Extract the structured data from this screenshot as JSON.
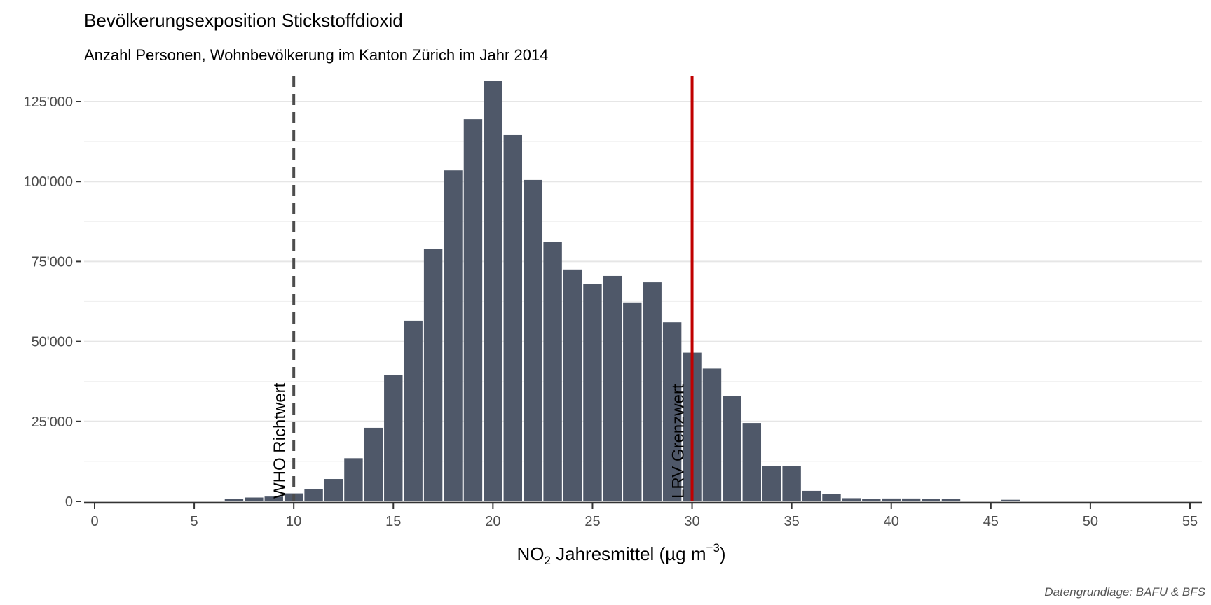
{
  "chart_data": {
    "type": "bar",
    "title": "Bevölkerungsexposition Stickstoffdioxid",
    "subtitle": "Anzahl Personen, Wohnbevölkerung im Kanton Zürich im Jahr 2014",
    "xlabel": {
      "pre": "NO",
      "sub": "2",
      "mid": " Jahresmittel (µg m",
      "sup": "−3",
      "post": ")"
    },
    "ylabel": "",
    "caption": "Datengrundlage: BAFU & BFS",
    "bar_color": "#4f5869",
    "xlim": [
      -0.5,
      55.5
    ],
    "ylim": [
      0,
      132000
    ],
    "x_ticks": [
      0,
      5,
      10,
      15,
      20,
      25,
      30,
      35,
      40,
      45,
      50,
      55
    ],
    "x_tick_labels": [
      "0",
      "5",
      "10",
      "15",
      "20",
      "25",
      "30",
      "35",
      "40",
      "45",
      "50",
      "55"
    ],
    "y_ticks": [
      0,
      25000,
      50000,
      75000,
      100000,
      125000
    ],
    "y_tick_labels": [
      "0",
      "25'000",
      "50'000",
      "75'000",
      "100'000",
      "125'000"
    ],
    "grid": true,
    "bins": [
      {
        "x": 7,
        "value": 700
      },
      {
        "x": 8,
        "value": 1200
      },
      {
        "x": 9,
        "value": 1500
      },
      {
        "x": 10,
        "value": 2500
      },
      {
        "x": 11,
        "value": 3800
      },
      {
        "x": 12,
        "value": 7000
      },
      {
        "x": 13,
        "value": 13500
      },
      {
        "x": 14,
        "value": 23000
      },
      {
        "x": 15,
        "value": 39500
      },
      {
        "x": 16,
        "value": 56500
      },
      {
        "x": 17,
        "value": 79000
      },
      {
        "x": 18,
        "value": 103500
      },
      {
        "x": 19,
        "value": 119500
      },
      {
        "x": 20,
        "value": 131500
      },
      {
        "x": 21,
        "value": 114500
      },
      {
        "x": 22,
        "value": 100500
      },
      {
        "x": 23,
        "value": 81000
      },
      {
        "x": 24,
        "value": 72500
      },
      {
        "x": 25,
        "value": 68000
      },
      {
        "x": 26,
        "value": 70500
      },
      {
        "x": 27,
        "value": 62000
      },
      {
        "x": 28,
        "value": 68500
      },
      {
        "x": 29,
        "value": 56000
      },
      {
        "x": 30,
        "value": 46500
      },
      {
        "x": 31,
        "value": 41500
      },
      {
        "x": 32,
        "value": 33000
      },
      {
        "x": 33,
        "value": 24500
      },
      {
        "x": 34,
        "value": 11000
      },
      {
        "x": 35,
        "value": 11000
      },
      {
        "x": 36,
        "value": 3300
      },
      {
        "x": 37,
        "value": 2200
      },
      {
        "x": 38,
        "value": 1000
      },
      {
        "x": 39,
        "value": 800
      },
      {
        "x": 40,
        "value": 900
      },
      {
        "x": 41,
        "value": 900
      },
      {
        "x": 42,
        "value": 800
      },
      {
        "x": 43,
        "value": 700
      },
      {
        "x": 46,
        "value": 500
      }
    ],
    "reference_lines": [
      {
        "x": 10,
        "label": "WHO Richtwert",
        "style": "dashed",
        "color": "#4d4d4d"
      },
      {
        "x": 30,
        "label": "LRV Grenzwert",
        "style": "solid",
        "color": "#c00000"
      }
    ]
  }
}
